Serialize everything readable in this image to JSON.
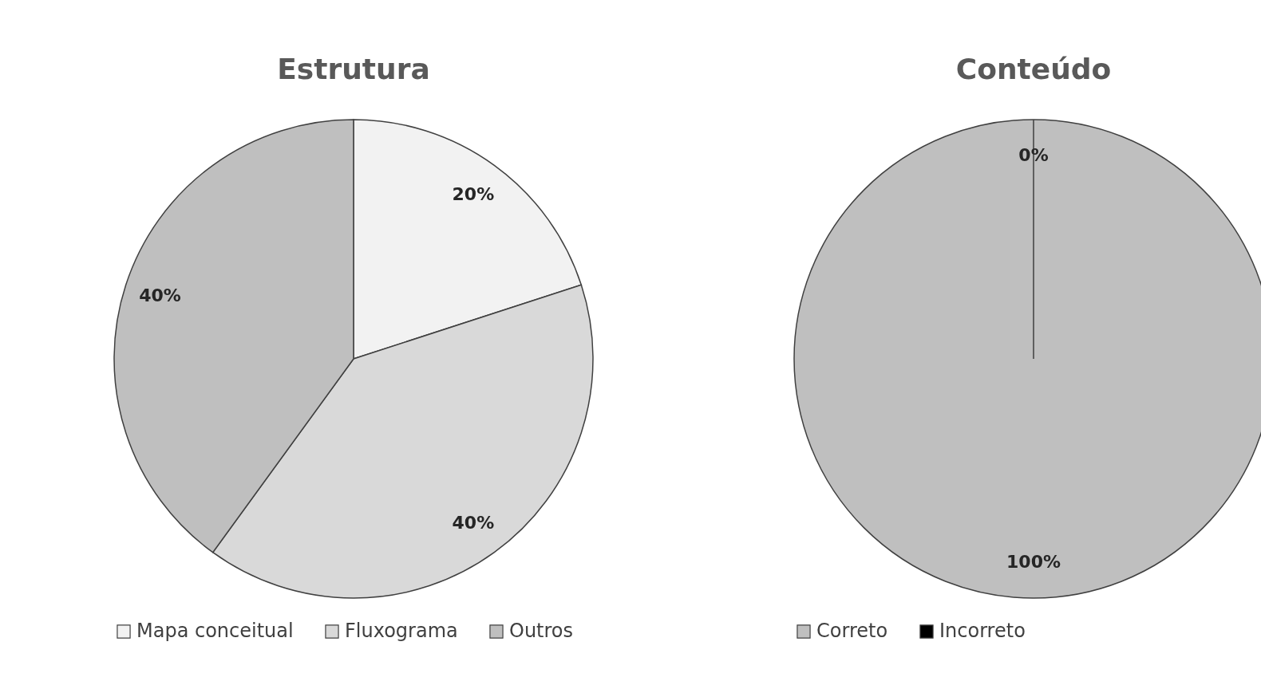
{
  "chart_data": [
    {
      "type": "pie",
      "title": "Estrutura",
      "categories": [
        "Mapa conceitual",
        "Fluxograma",
        "Outros"
      ],
      "values": [
        20,
        40,
        40
      ],
      "colors": [
        "#f2f2f2",
        "#d9d9d9",
        "#bfbfbf"
      ],
      "value_labels": [
        "20%",
        "40%",
        "40%"
      ],
      "legend": "bottom"
    },
    {
      "type": "pie",
      "title": "Conteúdo",
      "categories": [
        "Correto",
        "Incorreto"
      ],
      "values": [
        100,
        0
      ],
      "colors": [
        "#bfbfbf",
        "#000000"
      ],
      "value_labels": [
        "100%",
        "0%"
      ],
      "legend": "bottom"
    }
  ]
}
